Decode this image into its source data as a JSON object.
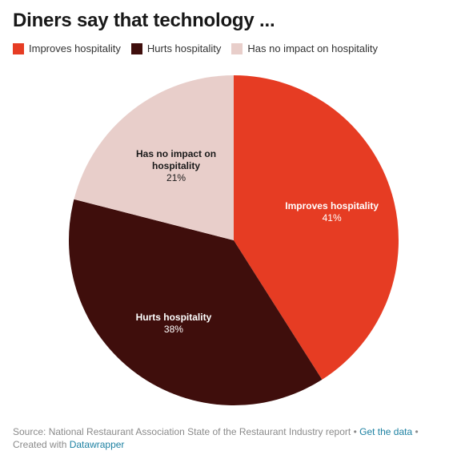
{
  "title": "Diners say that technology ...",
  "legend": [
    {
      "label": "Improves hospitality",
      "color": "#e63c23"
    },
    {
      "label": "Hurts hospitality",
      "color": "#3f0e0c"
    },
    {
      "label": "Has no impact on hospitality",
      "color": "#e8ceca"
    }
  ],
  "chart_data": {
    "type": "pie",
    "title": "Diners say that technology ...",
    "legend_placement": "top",
    "slices": [
      {
        "label": "Improves hospitality",
        "value": 41,
        "display": "41%",
        "color": "#e63c23",
        "label_color": "#ffffff"
      },
      {
        "label": "Hurts hospitality",
        "value": 38,
        "display": "38%",
        "color": "#3f0e0c",
        "label_color": "#ffffff"
      },
      {
        "label": "Has no impact on hospitality",
        "value": 21,
        "display": "21%",
        "color": "#e8ceca",
        "label_color": "#1a1a1a"
      }
    ]
  },
  "footer": {
    "source": "Source: National Restaurant Association State of the Restaurant Industry report",
    "separator": " • ",
    "get_data": "Get the data",
    "created_with": "Created with",
    "datawrapper": "Datawrapper"
  }
}
